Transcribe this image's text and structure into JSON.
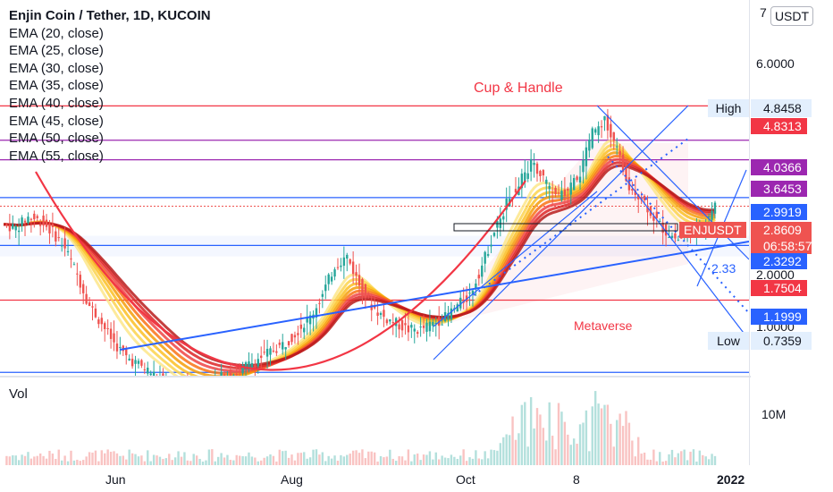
{
  "header": {
    "title": "Enjin Coin / Tether, 1D, KUCOIN",
    "indicators": [
      "EMA (20, close)",
      "EMA (25, close)",
      "EMA (30, close)",
      "EMA (35, close)",
      "EMA (40, close)",
      "EMA (45, close)",
      "EMA (50, close)",
      "EMA (55, close)"
    ]
  },
  "currency": "USDT",
  "volume_label": "Vol",
  "volume_axis_label": "10M",
  "annotations": {
    "cup_handle": "Cup & Handle",
    "metaverse": "Metaverse",
    "level_233": "2.33"
  },
  "price_axis": {
    "top_label": "7",
    "labels": [
      "6.0000",
      "2.0000",
      "1.0000"
    ]
  },
  "tags": {
    "high_label": "High",
    "high_value": "4.8458",
    "low_label": "Low",
    "low_value": "0.7359",
    "symbol": "ENJUSDT",
    "last_price": "2.8609",
    "countdown": "06:58:57",
    "levels": [
      {
        "value": "4.8313",
        "color": "#f23645"
      },
      {
        "value": "4.0366",
        "color": "#9c27b0"
      },
      {
        "value": "3.6453",
        "color": "#9c27b0"
      },
      {
        "value": "2.9919",
        "color": "#2962ff"
      },
      {
        "value": "2.3292",
        "color": "#2962ff"
      },
      {
        "value": "1.7504",
        "color": "#f23645"
      },
      {
        "value": "1.1999",
        "color": "#2962ff"
      }
    ]
  },
  "x_axis": [
    "Jun",
    "Aug",
    "Oct",
    "8",
    "2022"
  ],
  "colors": {
    "up": "#26a69a",
    "down": "#ef5350",
    "trend": "#2962ff",
    "red_line": "#f23645",
    "purple": "#9c27b0",
    "ema_gradient": [
      "#fde68a",
      "#fcd34d",
      "#fbbf24",
      "#f59e0b",
      "#f97316",
      "#ef4444",
      "#dc2626",
      "#b91c1c"
    ]
  },
  "chart_data": {
    "type": "candlestick",
    "title": "Enjin Coin / Tether, 1D, KUCOIN",
    "log_scale": true,
    "ylim": [
      0.7,
      7
    ],
    "x_ticks": [
      "Jun",
      "Aug",
      "Oct",
      "8",
      "2022"
    ],
    "horizontal_levels": [
      4.8313,
      4.0366,
      3.6453,
      2.9919,
      2.3292,
      1.7504,
      1.1999
    ],
    "high": 4.8458,
    "low": 0.7359,
    "last": 2.8609,
    "approx_close_series": [
      2.6,
      2.55,
      2.7,
      2.65,
      2.5,
      2.3,
      2.0,
      1.7,
      1.55,
      1.4,
      1.3,
      1.25,
      1.2,
      1.15,
      1.1,
      1.1,
      1.12,
      1.15,
      1.18,
      1.2,
      1.25,
      1.3,
      1.35,
      1.4,
      1.5,
      1.6,
      1.8,
      2.1,
      2.2,
      1.9,
      1.7,
      1.6,
      1.55,
      1.5,
      1.5,
      1.55,
      1.6,
      1.7,
      1.8,
      2.1,
      2.5,
      2.9,
      3.2,
      3.6,
      3.3,
      3.0,
      3.1,
      3.4,
      4.2,
      4.5,
      3.8,
      3.2,
      3.0,
      2.7,
      2.5,
      2.4,
      2.5,
      2.6,
      2.86
    ]
  }
}
